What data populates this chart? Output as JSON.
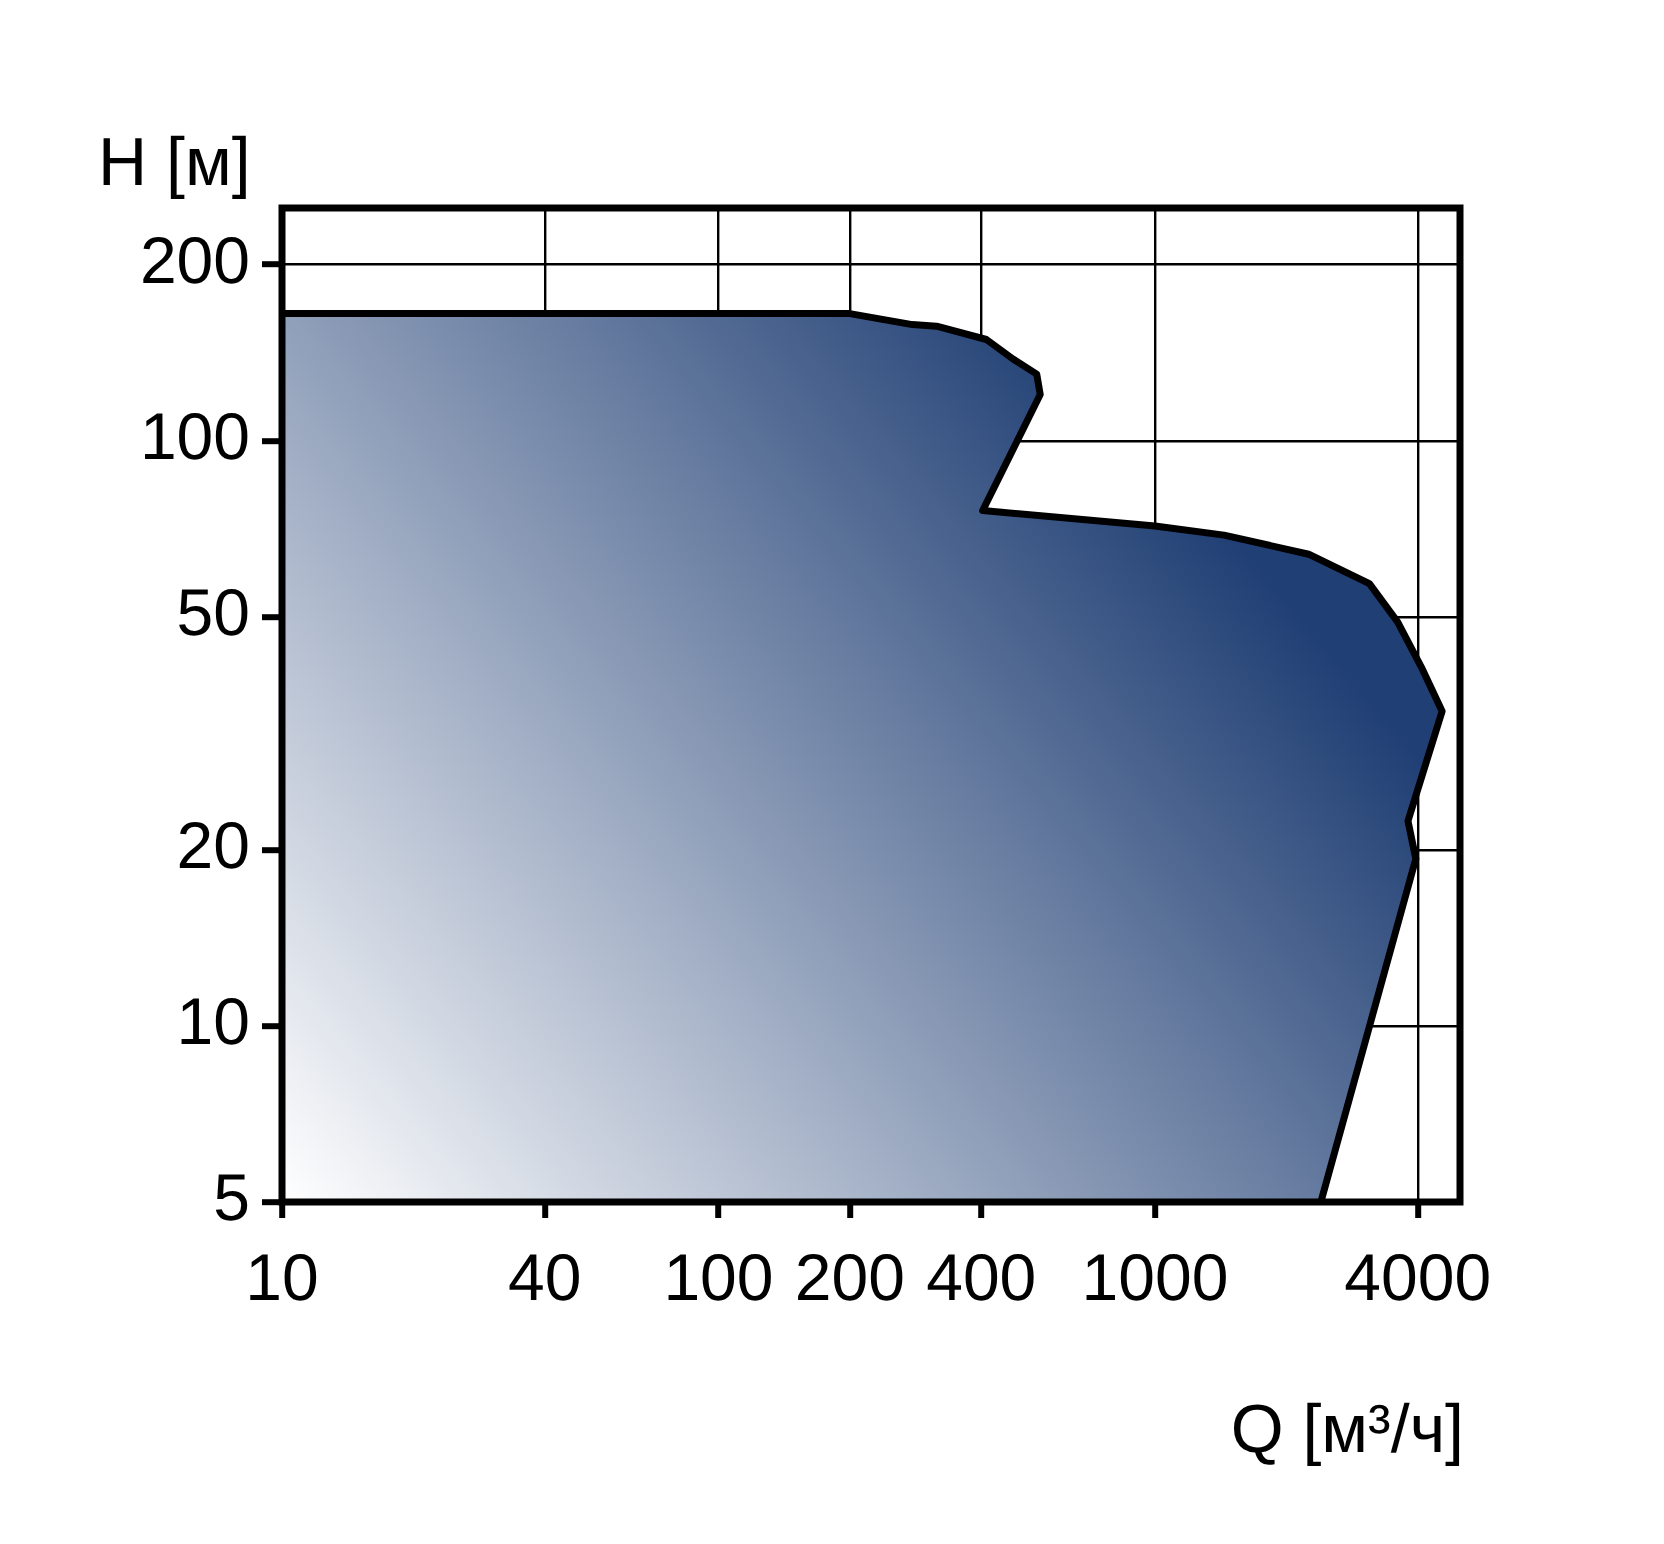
{
  "chart_data": {
    "type": "area",
    "xlabel": "Q [м³/ч]",
    "ylabel": "H [м]",
    "log": "xy",
    "grid": true,
    "legend": false,
    "marker": "none",
    "line_style": "solid",
    "xlim": [
      10,
      5000
    ],
    "xticks": [
      10,
      40,
      100,
      200,
      400,
      1000,
      4000
    ],
    "ylim": [
      5,
      250
    ],
    "yticks": [
      5,
      10,
      20,
      50,
      100,
      200
    ],
    "series": [
      {
        "color": "#203f74",
        "x": [
          10,
          200,
          278,
          316,
          411,
          473,
          536,
          546,
          403,
          1000,
          1440,
          2250,
          3100,
          3600,
          4080,
          4550,
          3800,
          3960,
          2400
        ],
        "values": [
          165,
          165,
          158,
          157,
          149,
          138,
          130,
          120,
          76,
          71.5,
          69,
          64,
          57,
          49,
          41,
          34.5,
          22.4,
          19.3,
          5
        ]
      }
    ]
  }
}
